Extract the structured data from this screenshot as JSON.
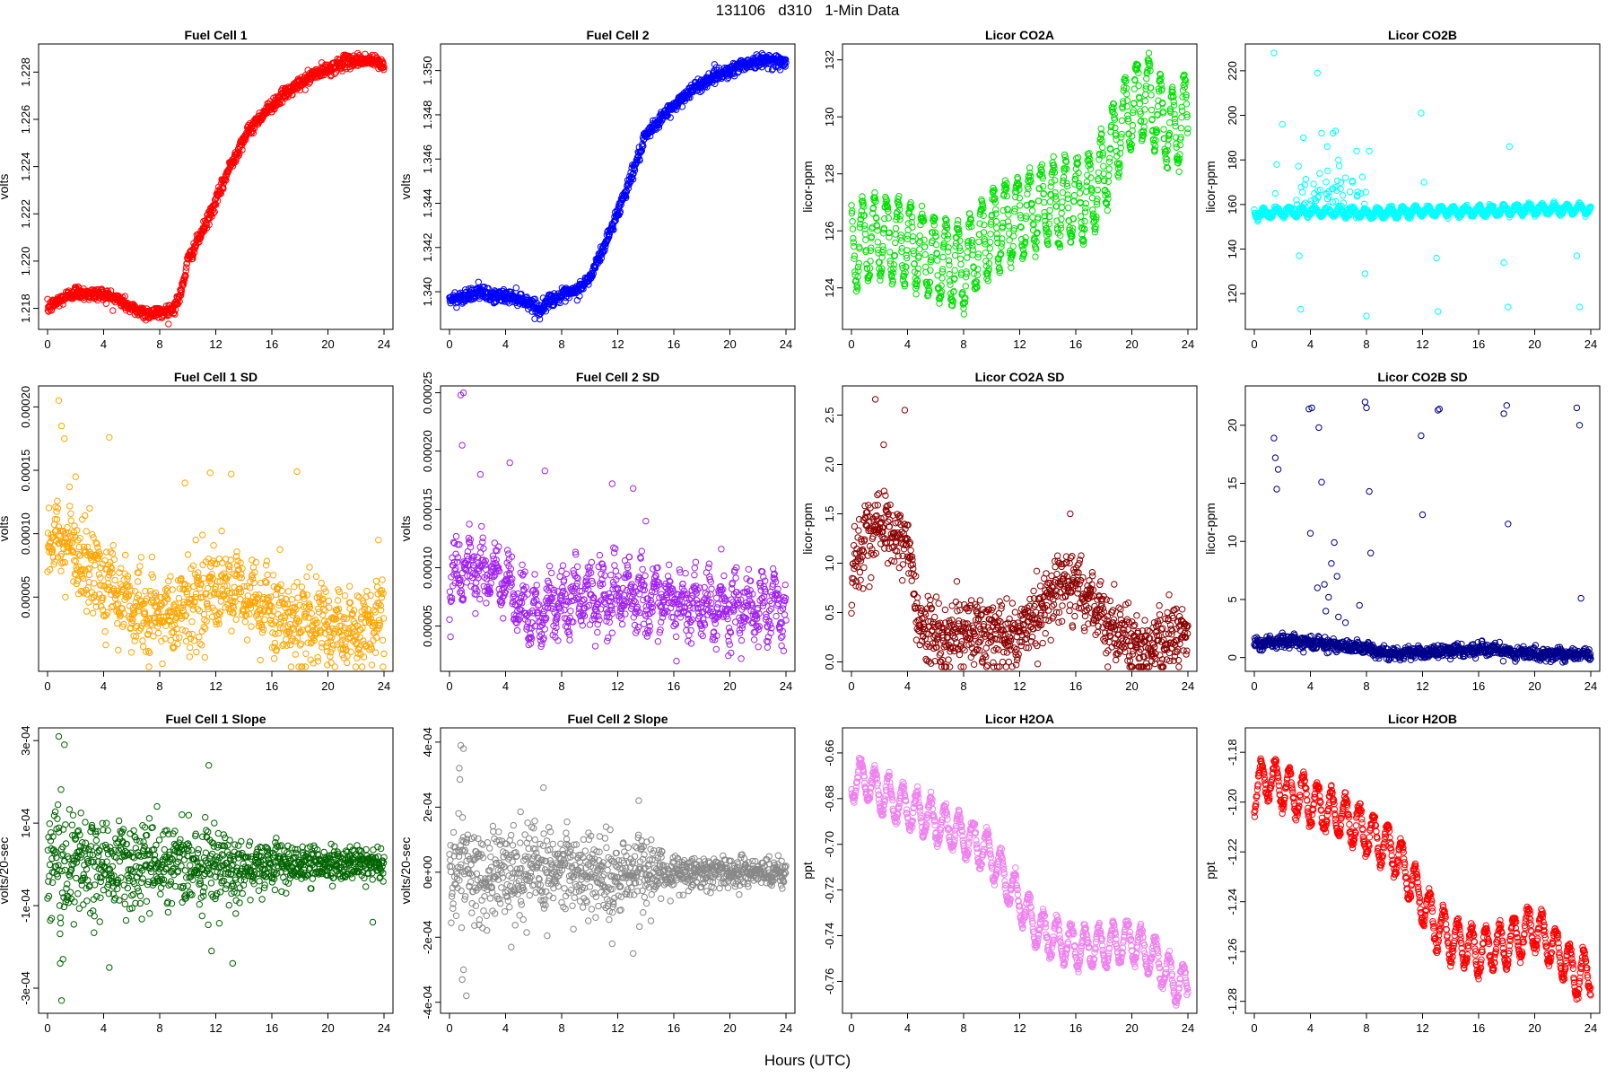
{
  "figure": {
    "title": "131106   d310   1-Min Data",
    "xlabel": "Hours (UTC)"
  },
  "chart_data": [
    {
      "type": "scatter",
      "title": "Fuel Cell 1",
      "ylabel": "volts",
      "color": "#ff0000",
      "xlim": [
        0,
        24
      ],
      "ylim": [
        1.2173,
        1.229
      ],
      "xticks": [
        0,
        4,
        8,
        12,
        16,
        20,
        24
      ],
      "yticks": [
        1.218,
        1.22,
        1.222,
        1.224,
        1.226,
        1.228
      ],
      "ytick_labels": [
        "1.218",
        "1.220",
        "1.222",
        "1.224",
        "1.226",
        "1.228"
      ],
      "points_summary": {
        "x": [
          0,
          1,
          2,
          3,
          4,
          5,
          6,
          7,
          8,
          9,
          9.5,
          10,
          11,
          12,
          13,
          14,
          15,
          16,
          17,
          18,
          19,
          20,
          21,
          22,
          23,
          24
        ],
        "y": [
          1.218,
          1.2184,
          1.2187,
          1.2186,
          1.2186,
          1.2184,
          1.218,
          1.2178,
          1.2178,
          1.218,
          1.2186,
          1.22,
          1.2212,
          1.2225,
          1.224,
          1.2252,
          1.226,
          1.2266,
          1.2271,
          1.2275,
          1.2279,
          1.2281,
          1.2284,
          1.2285,
          1.2285,
          1.2283
        ]
      },
      "noise": 0.00014
    },
    {
      "type": "scatter",
      "title": "Fuel Cell 2",
      "ylabel": "volts",
      "color": "#0000ff",
      "xlim": [
        0,
        24
      ],
      "ylim": [
        1.3385,
        1.351
      ],
      "xticks": [
        0,
        4,
        8,
        12,
        16,
        20,
        24
      ],
      "yticks": [
        1.34,
        1.342,
        1.344,
        1.346,
        1.348,
        1.35
      ],
      "ytick_labels": [
        "1.340",
        "1.342",
        "1.344",
        "1.346",
        "1.348",
        "1.350"
      ],
      "points_summary": {
        "x": [
          0,
          1,
          2,
          3,
          4,
          5,
          6,
          6.5,
          7,
          8,
          9,
          10,
          11,
          12,
          13,
          14,
          15,
          16,
          17,
          18,
          19,
          20,
          21,
          22,
          23,
          24
        ],
        "y": [
          1.3396,
          1.3398,
          1.34,
          1.3398,
          1.3398,
          1.3397,
          1.3394,
          1.3391,
          1.3396,
          1.3398,
          1.34,
          1.3406,
          1.342,
          1.3436,
          1.3453,
          1.347,
          1.3478,
          1.3484,
          1.349,
          1.3494,
          1.3498,
          1.35,
          1.3503,
          1.3504,
          1.3505,
          1.3503
        ]
      },
      "noise": 0.00015
    },
    {
      "type": "scatter",
      "title": "Licor CO2A",
      "ylabel": "licor-ppm",
      "color": "#00e000",
      "xlim": [
        0,
        24
      ],
      "ylim": [
        122.7,
        132.4
      ],
      "xticks": [
        0,
        4,
        8,
        12,
        16,
        20,
        24
      ],
      "yticks": [
        124,
        126,
        128,
        130,
        132
      ],
      "ytick_labels": [
        "124",
        "126",
        "128",
        "130",
        "132"
      ],
      "points_summary": {
        "x": [
          0,
          2,
          4,
          6,
          8,
          10,
          12,
          14,
          16,
          17,
          18,
          19,
          20,
          21,
          22,
          23,
          24
        ],
        "y": [
          125.5,
          125.8,
          125.6,
          125.0,
          124.8,
          126.0,
          126.5,
          127.0,
          127.0,
          127.2,
          128.0,
          129.5,
          130.3,
          130.8,
          130.0,
          129.5,
          130.0
        ]
      },
      "osc_amp": 1.4,
      "osc_period": 0.85,
      "noise": 0.15
    },
    {
      "type": "scatter",
      "title": "Licor CO2B",
      "ylabel": "licor-ppm",
      "color": "#00ffff",
      "xlim": [
        0,
        24
      ],
      "ylim": [
        106,
        230
      ],
      "xticks": [
        0,
        4,
        8,
        12,
        16,
        20,
        24
      ],
      "yticks": [
        120,
        140,
        160,
        180,
        200,
        220
      ],
      "ytick_labels": [
        "120",
        "140",
        "160",
        "180",
        "200",
        "220"
      ],
      "points_summary": {
        "x": [
          0,
          4,
          8,
          12,
          16,
          20,
          24
        ],
        "y": [
          156,
          157,
          156,
          157,
          157,
          158,
          158
        ]
      },
      "osc_amp": 1.8,
      "osc_period": 0.9,
      "noise": 0.6,
      "outliers": {
        "x": [
          1.4,
          1.6,
          2.0,
          3.2,
          3.3,
          4.5,
          5.6,
          5.8,
          7.9,
          8.0,
          8.2,
          11.9,
          12.1,
          13.0,
          13.1,
          17.8,
          18.1,
          18.2,
          23.0,
          23.2,
          3.5,
          4.8,
          5.2,
          6.0,
          6.5,
          7.3,
          7.6,
          1.5,
          7.0
        ],
        "y": [
          228,
          178,
          196,
          137,
          113,
          219,
          192,
          193,
          129,
          110,
          184,
          201,
          170,
          136,
          112,
          134,
          114,
          186,
          137,
          114,
          190,
          192,
          186,
          180,
          172,
          184,
          165,
          165,
          170
        ]
      },
      "burst": {
        "x0": 3.0,
        "x1": 8.0,
        "amp": 10
      }
    },
    {
      "type": "scatter",
      "title": "Fuel Cell 1 SD",
      "ylabel": "volts",
      "color": "#ffa500",
      "xlim": [
        0,
        24
      ],
      "ylim": [
        -5e-06,
        0.000213
      ],
      "xticks": [
        0,
        4,
        8,
        12,
        16,
        20,
        24
      ],
      "yticks": [
        5e-05,
        0.0001,
        0.00015,
        0.0002
      ],
      "ytick_labels": [
        "0.00005",
        "0.00010",
        "0.00015",
        "0.00020"
      ],
      "points_summary": {
        "x": [
          0,
          1,
          2,
          3,
          4,
          5,
          6,
          7,
          8,
          10,
          12,
          14,
          15,
          16,
          17,
          18,
          20,
          22,
          24
        ],
        "y": [
          8.5e-05,
          9.5e-05,
          8.5e-05,
          7.5e-05,
          6.5e-05,
          5.5e-05,
          4.5e-05,
          3.5e-05,
          3.5e-05,
          4.5e-05,
          5.5e-05,
          5e-05,
          4.5e-05,
          4e-05,
          3.5e-05,
          3e-05,
          2.5e-05,
          2.5e-05,
          3e-05
        ]
      },
      "osc_amp": 1e-05,
      "osc_period": 1.0,
      "noise": 1.6e-05,
      "outliers": {
        "x": [
          0.8,
          1.0,
          1.2,
          4.4,
          9.8,
          11.6,
          13.1,
          17.8,
          23.6,
          2.0,
          3.0
        ],
        "y": [
          0.000205,
          0.000185,
          0.000175,
          0.000176,
          0.00014,
          0.000148,
          0.000147,
          0.000149,
          9.5e-05,
          0.000145,
          0.00012
        ]
      }
    },
    {
      "type": "scatter",
      "title": "Fuel Cell 2 SD",
      "ylabel": "volts",
      "color": "#a020f0",
      "xlim": [
        0,
        24
      ],
      "ylim": [
        1.5e-05,
        0.000252
      ],
      "xticks": [
        0,
        4,
        8,
        12,
        16,
        20,
        24
      ],
      "yticks": [
        5e-05,
        0.0001,
        0.00015,
        0.0002,
        0.00025
      ],
      "ytick_labels": [
        "0.00005",
        "0.00010",
        "0.00015",
        "0.00020",
        "0.00025"
      ],
      "points_summary": {
        "x": [
          0,
          1,
          2,
          3,
          4,
          5,
          6,
          8,
          10,
          12,
          14,
          16,
          18,
          20,
          22,
          24
        ],
        "y": [
          8e-05,
          0.000105,
          0.0001,
          9.5e-05,
          8.5e-05,
          6.5e-05,
          6e-05,
          7e-05,
          7.5e-05,
          7.5e-05,
          7.5e-05,
          7e-05,
          6.5e-05,
          6.5e-05,
          6.5e-05,
          7e-05
        ]
      },
      "osc_amp": 1.6e-05,
      "osc_period": 0.95,
      "noise": 1.2e-05,
      "outliers": {
        "x": [
          0.8,
          1.0,
          0.9,
          2.2,
          4.3,
          6.8,
          11.6,
          13.1,
          14.0
        ],
        "y": [
          0.000248,
          0.00025,
          0.000205,
          0.00018,
          0.00019,
          0.000183,
          0.000172,
          0.000168,
          0.00014
        ]
      }
    },
    {
      "type": "scatter",
      "title": "Licor CO2A SD",
      "ylabel": "licor-ppm",
      "color": "#8b0000",
      "xlim": [
        0,
        24
      ],
      "ylim": [
        -0.05,
        2.75
      ],
      "xticks": [
        0,
        4,
        8,
        12,
        16,
        20,
        24
      ],
      "yticks": [
        0,
        0.5,
        1,
        1.5,
        2,
        2.5
      ],
      "ytick_labels": [
        "0.0",
        "0.5",
        "1.0",
        "1.5",
        "2.0",
        "2.5"
      ],
      "points_summary": {
        "x": [
          0,
          0.5,
          1,
          2,
          3,
          4,
          4.5,
          5,
          6,
          8,
          10,
          12,
          13,
          14,
          15,
          16,
          17,
          18,
          19,
          20,
          21,
          22,
          24
        ],
        "y": [
          0.8,
          1.1,
          1.3,
          1.4,
          1.3,
          1.2,
          0.7,
          0.3,
          0.25,
          0.3,
          0.3,
          0.25,
          0.45,
          0.65,
          0.8,
          0.8,
          0.6,
          0.45,
          0.3,
          0.2,
          0.15,
          0.2,
          0.3
        ]
      },
      "osc_amp": 0.06,
      "osc_period": 0.8,
      "noise": 0.16,
      "outliers": {
        "x": [
          1.7,
          2.3,
          3.8,
          15.6
        ],
        "y": [
          2.66,
          2.2,
          2.55,
          1.5
        ]
      }
    },
    {
      "type": "scatter",
      "title": "Licor CO2B SD",
      "ylabel": "licor-ppm",
      "color": "#00008b",
      "xlim": [
        0,
        24
      ],
      "ylim": [
        -0.8,
        23
      ],
      "xticks": [
        0,
        4,
        8,
        12,
        16,
        20,
        24
      ],
      "yticks": [
        0,
        5,
        10,
        15,
        20
      ],
      "ytick_labels": [
        "0",
        "5",
        "10",
        "15",
        "20"
      ],
      "points_summary": {
        "x": [
          0,
          2,
          4,
          6,
          8,
          9,
          12,
          16,
          20,
          24
        ],
        "y": [
          1.1,
          1.5,
          1.3,
          1.0,
          0.8,
          0.4,
          0.4,
          0.7,
          0.3,
          0.3
        ]
      },
      "osc_amp": 0.15,
      "osc_period": 0.9,
      "noise": 0.25,
      "outliers": {
        "x": [
          1.4,
          1.5,
          1.7,
          1.6,
          3.9,
          4.1,
          4.6,
          4.8,
          5.0,
          5.3,
          5.5,
          5.7,
          5.9,
          7.9,
          8.0,
          8.2,
          8.3,
          11.9,
          12.0,
          13.1,
          13.2,
          17.8,
          18.0,
          18.1,
          23.0,
          23.2,
          23.3,
          4.0,
          4.5,
          5.1,
          6.0,
          6.5,
          7.5
        ],
        "y": [
          18.9,
          17.2,
          16.2,
          14.5,
          21.4,
          21.5,
          19.8,
          15.1,
          6.3,
          5.2,
          8.1,
          9.9,
          7.0,
          22.0,
          21.5,
          14.3,
          9.0,
          19.1,
          12.3,
          21.3,
          21.4,
          21.0,
          21.7,
          11.5,
          21.5,
          20.0,
          5.1,
          10.7,
          6.0,
          4.0,
          3.5,
          3.0,
          4.5
        ]
      }
    },
    {
      "type": "scatter",
      "title": "Fuel Cell 1 Slope",
      "ylabel": "volts/20-sec",
      "color": "#006400",
      "xlim": [
        0,
        24
      ],
      "ylim": [
        -0.00035,
        0.00032
      ],
      "xticks": [
        0,
        4,
        8,
        12,
        16,
        20,
        24
      ],
      "yticks": [
        -0.0003,
        -0.0001,
        0.0001,
        0.0003
      ],
      "ytick_labels": [
        "-3e-04",
        "-1e-04",
        "1e-04",
        "3e-04"
      ],
      "points_summary": {
        "x": [
          0,
          24
        ],
        "y": [
          0,
          0
        ]
      },
      "noise_profile": {
        "x": [
          0,
          2,
          4,
          8,
          12,
          14,
          16,
          20,
          24
        ],
        "s": [
          8e-05,
          7e-05,
          6e-05,
          4.5e-05,
          5e-05,
          4e-05,
          2.5e-05,
          2e-05,
          2e-05
        ]
      },
      "outliers": {
        "x": [
          1.0,
          1.2,
          0.9,
          4.4,
          11.5,
          11.7,
          13.2,
          0.8,
          1.1,
          23.2
        ],
        "y": [
          -0.00033,
          0.00029,
          -0.00024,
          -0.00025,
          0.00024,
          -0.00021,
          -0.00024,
          0.00031,
          -0.00023,
          -0.00014
        ]
      }
    },
    {
      "type": "scatter",
      "title": "Fuel Cell 2 Slope",
      "ylabel": "volts/20-sec",
      "color": "#888888",
      "xlim": [
        0,
        24
      ],
      "ylim": [
        -0.00042,
        0.00043
      ],
      "xticks": [
        0,
        4,
        8,
        12,
        16,
        20,
        24
      ],
      "yticks": [
        -0.0004,
        -0.0002,
        0,
        0.0002,
        0.0004
      ],
      "ytick_labels": [
        "-4e-04",
        "-2e-04",
        "0e+00",
        "2e-04",
        "4e-04"
      ],
      "points_summary": {
        "x": [
          0,
          24
        ],
        "y": [
          0,
          0
        ]
      },
      "noise_profile": {
        "x": [
          0,
          2,
          4,
          8,
          12,
          14,
          16,
          20,
          24
        ],
        "s": [
          9e-05,
          8e-05,
          7e-05,
          6e-05,
          6e-05,
          5e-05,
          3e-05,
          2.5e-05,
          2e-05
        ]
      },
      "outliers": {
        "x": [
          0.8,
          1.0,
          0.9,
          1.2,
          4.4,
          11.6,
          13.1,
          6.7,
          13.5,
          0.7,
          1.0
        ],
        "y": [
          0.00039,
          0.00038,
          -0.00033,
          -0.00038,
          -0.00023,
          -0.00022,
          -0.00025,
          0.00026,
          0.00022,
          0.00032,
          -0.0003
        ]
      }
    },
    {
      "type": "scatter",
      "title": "Licor H2OA",
      "ylabel": "ppt",
      "color": "#ee82ee",
      "xlim": [
        0,
        24
      ],
      "ylim": [
        -0.772,
        -0.651
      ],
      "xticks": [
        0,
        4,
        8,
        12,
        16,
        20,
        24
      ],
      "yticks": [
        -0.76,
        -0.74,
        -0.72,
        -0.7,
        -0.68,
        -0.66
      ],
      "ytick_labels": [
        "-0.76",
        "-0.74",
        "-0.72",
        "-0.70",
        "-0.68",
        "-0.66"
      ],
      "points_summary": {
        "x": [
          0,
          1,
          2,
          4,
          6,
          8,
          10,
          11,
          12,
          13,
          14,
          16,
          18,
          20,
          22,
          23,
          24
        ],
        "y": [
          -0.672,
          -0.671,
          -0.678,
          -0.684,
          -0.69,
          -0.696,
          -0.705,
          -0.715,
          -0.725,
          -0.735,
          -0.74,
          -0.745,
          -0.745,
          -0.742,
          -0.752,
          -0.76,
          -0.762
        ]
      },
      "osc_amp": 0.0085,
      "osc_period": 1.0,
      "noise": 0.0012
    },
    {
      "type": "scatter",
      "title": "Licor H2OB",
      "ylabel": "ppt",
      "color": "#ff0000",
      "xlim": [
        0,
        24
      ],
      "ylim": [
        -1.283,
        -1.172
      ],
      "xticks": [
        0,
        4,
        8,
        12,
        16,
        20,
        24
      ],
      "yticks": [
        -1.28,
        -1.26,
        -1.24,
        -1.22,
        -1.2,
        -1.18
      ],
      "ytick_labels": [
        "-1.28",
        "-1.26",
        "-1.24",
        "-1.22",
        "-1.20",
        "-1.18"
      ],
      "points_summary": {
        "x": [
          0,
          1,
          2,
          4,
          6,
          8,
          10,
          11,
          12,
          13,
          14,
          16,
          18,
          20,
          22,
          23,
          24
        ],
        "y": [
          -1.195,
          -1.19,
          -1.194,
          -1.2,
          -1.205,
          -1.212,
          -1.22,
          -1.23,
          -1.24,
          -1.25,
          -1.255,
          -1.26,
          -1.257,
          -1.25,
          -1.262,
          -1.27,
          -1.268
        ]
      },
      "osc_amp": 0.0085,
      "osc_period": 1.0,
      "noise": 0.0012
    }
  ]
}
